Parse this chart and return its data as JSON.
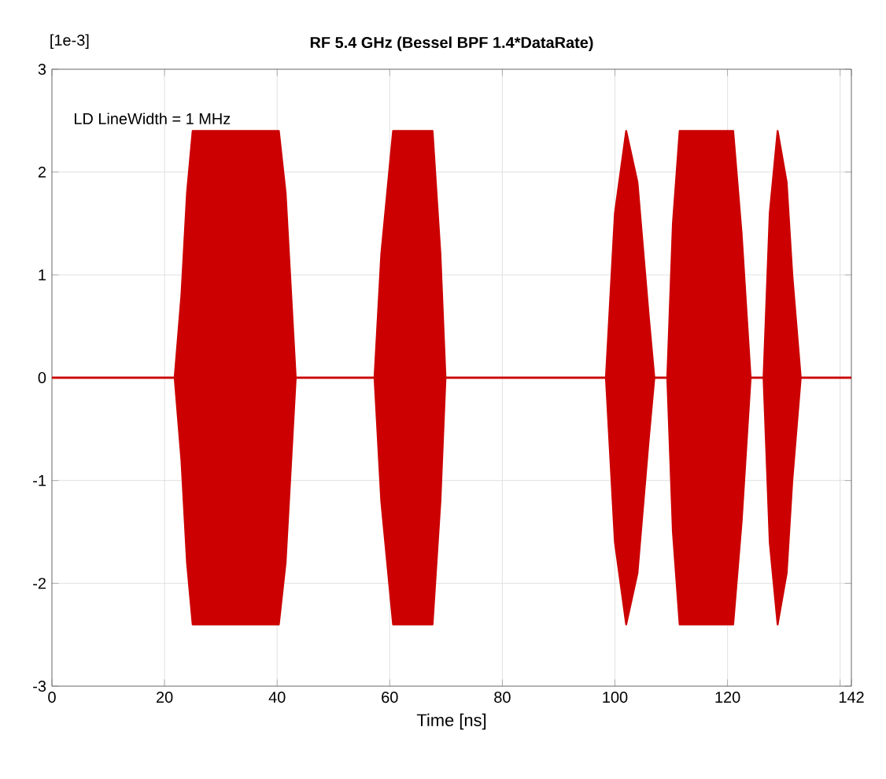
{
  "chart_data": {
    "type": "area",
    "title": "RF 5.4 GHz (Bessel BPF 1.4*DataRate)",
    "xlabel": "Time [ns]",
    "annotations": [
      "[1e-3]",
      "LD LineWidth = 1 MHz"
    ],
    "x": [
      0,
      21.8,
      23,
      24,
      25,
      40.3,
      41.5,
      43.3,
      57.3,
      58.5,
      60.6,
      67.6,
      69,
      69.9,
      98.4,
      100,
      102,
      104,
      106,
      107,
      109.3,
      110.3,
      111.5,
      121,
      122.5,
      124.1,
      126.4,
      127.5,
      128.9,
      130.5,
      131.5,
      133,
      142
    ],
    "series": [
      {
        "color": "#cc0000",
        "values": [
          0,
          0,
          0.8,
          1.8,
          2.4,
          2.4,
          1.8,
          0,
          0,
          1.2,
          2.4,
          2.4,
          1.2,
          0,
          0,
          1.6,
          2.4,
          1.9,
          0.6,
          0,
          0,
          1.5,
          2.4,
          2.4,
          1.4,
          0,
          0,
          1.6,
          2.4,
          1.9,
          1,
          0,
          0
        ]
      },
      {
        "color": "#cc0000",
        "values": [
          0,
          0,
          -0.8,
          -1.8,
          -2.4,
          -2.4,
          -1.8,
          0,
          0,
          -1.2,
          -2.4,
          -2.4,
          -1.2,
          0,
          0,
          -1.6,
          -2.4,
          -1.9,
          -0.6,
          0,
          0,
          -1.5,
          -2.4,
          -2.4,
          -1.4,
          0,
          0,
          -1.6,
          -2.4,
          -1.9,
          -1,
          0,
          0
        ]
      }
    ],
    "xlim": [
      0,
      142
    ],
    "xticks": [
      0,
      20,
      40,
      60,
      80,
      100,
      120,
      {
        "value": 140,
        "label": null
      },
      142
    ],
    "ylim": [
      -3,
      3
    ],
    "yticks": [
      -3,
      -2,
      -1,
      0,
      1,
      2,
      3
    ],
    "grid": true
  }
}
